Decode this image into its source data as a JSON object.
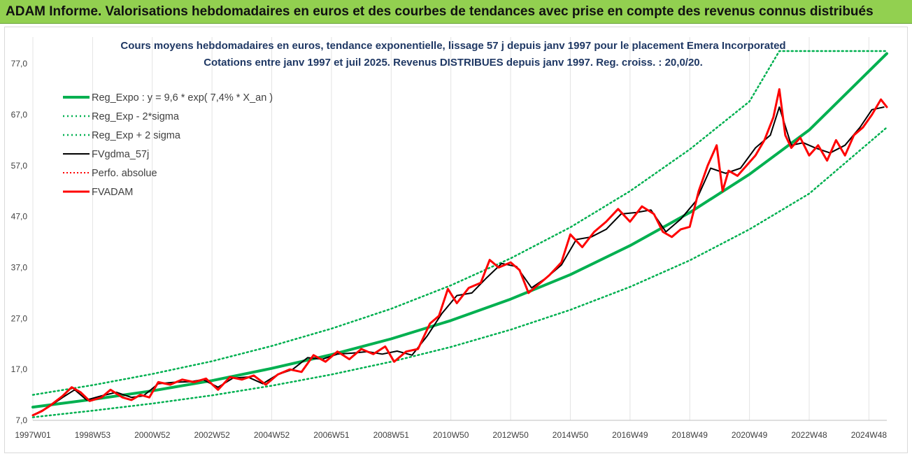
{
  "banner_title": "ADAM Informe. Valorisations hebdomadaires en euros et des courbes de tendances avec prise en compte des revenus connus distribués",
  "chart_data": {
    "type": "line",
    "title_line1": "Cours moyens hebdomadaires en euros, tendance exponentielle, lissage 57 j depuis janv 1997 pour le placement Emera Incorporated",
    "title_line2": "Cotations entre janv 1997 et juil 2025. Revenus DISTRIBUES depuis janv 1997. Reg. croiss. : 20,0/20.",
    "xlabel": "",
    "ylabel": "",
    "x_ticks": [
      "1997W01",
      "1998W53",
      "2000W52",
      "2002W52",
      "2004W52",
      "2006W51",
      "2008W51",
      "2010W50",
      "2012W50",
      "2014W50",
      "2016W49",
      "2018W49",
      "2020W49",
      "2022W48",
      "2024W48"
    ],
    "x_range": [
      1997.0,
      2025.6
    ],
    "y_ticks": [
      "7,0",
      "17,0",
      "27,0",
      "37,0",
      "47,0",
      "57,0",
      "67,0",
      "77,0"
    ],
    "ylim": [
      7,
      79.5
    ],
    "grid": "vertical",
    "legend_position": "top-left",
    "colors": {
      "reg_expo": "#00b050",
      "reg_band": "#00b050",
      "fvgdma": "#000000",
      "perfo": "#ff0000",
      "fvadam": "#ff0000",
      "banner_bg": "#92d050",
      "title": "#1f3864"
    },
    "series": [
      {
        "name": "Reg_Expo : y = 9,6 * exp( 7,4% *  X_an )",
        "style": "solid-thick",
        "x": [
          1997.0,
          1999.0,
          2001.0,
          2003.0,
          2005.0,
          2007.0,
          2009.0,
          2011.0,
          2013.0,
          2015.0,
          2017.0,
          2019.0,
          2021.0,
          2023.0,
          2025.6
        ],
        "y": [
          9.6,
          11.1,
          12.8,
          14.8,
          17.2,
          19.9,
          23.0,
          26.6,
          30.8,
          35.6,
          41.3,
          47.8,
          55.3,
          64.0,
          79.0
        ]
      },
      {
        "name": "Reg_Exp - 2*sigma",
        "style": "dotted",
        "x": [
          1997.0,
          1999.0,
          2001.0,
          2003.0,
          2005.0,
          2007.0,
          2009.0,
          2011.0,
          2013.0,
          2015.0,
          2017.0,
          2019.0,
          2021.0,
          2023.0,
          2025.6
        ],
        "y": [
          7.6,
          8.9,
          10.3,
          11.9,
          13.8,
          16.0,
          18.5,
          21.4,
          24.8,
          28.7,
          33.2,
          38.4,
          44.5,
          51.5,
          64.5
        ]
      },
      {
        "name": "Reg_Exp + 2 sigma",
        "style": "dotted",
        "x": [
          1997.0,
          1999.0,
          2001.0,
          2003.0,
          2005.0,
          2007.0,
          2009.0,
          2011.0,
          2013.0,
          2015.0,
          2017.0,
          2019.0,
          2021.0,
          2022.0,
          2025.6
        ],
        "y": [
          12.0,
          13.9,
          16.1,
          18.6,
          21.6,
          25.0,
          28.9,
          33.5,
          38.8,
          44.9,
          52.0,
          60.2,
          69.6,
          79.5,
          79.5
        ]
      },
      {
        "name": "FVgdma_57j",
        "style": "solid",
        "x": [
          1997.0,
          1997.5,
          1998.0,
          1998.4,
          1998.8,
          1999.3,
          1999.8,
          2000.3,
          2000.7,
          2001.2,
          2001.8,
          2002.3,
          2002.7,
          2003.2,
          2003.7,
          2004.2,
          2004.7,
          2005.2,
          2005.7,
          2006.2,
          2006.7,
          2007.2,
          2007.7,
          2008.2,
          2008.7,
          2009.2,
          2009.7,
          2010.2,
          2010.7,
          2011.2,
          2011.7,
          2012.2,
          2012.7,
          2013.2,
          2013.7,
          2014.2,
          2014.7,
          2015.2,
          2015.7,
          2016.2,
          2016.7,
          2017.2,
          2017.7,
          2018.2,
          2018.7,
          2019.2,
          2019.7,
          2020.2,
          2020.7,
          2021.2,
          2021.7,
          2022.0,
          2022.4,
          2022.8,
          2023.2,
          2023.7,
          2024.2,
          2024.7,
          2025.1,
          2025.5
        ],
        "y": [
          8.0,
          9.5,
          11.5,
          13.0,
          11.0,
          11.8,
          12.5,
          11.5,
          11.8,
          14.2,
          14.5,
          14.6,
          15.0,
          13.5,
          15.3,
          15.5,
          14.2,
          16.0,
          17.0,
          19.3,
          19.0,
          20.0,
          20.2,
          20.5,
          20.0,
          20.6,
          19.8,
          23.5,
          28.0,
          31.5,
          32.0,
          35.0,
          37.8,
          37.2,
          33.0,
          35.0,
          37.5,
          42.5,
          43.0,
          44.5,
          47.5,
          47.8,
          48.3,
          44.0,
          46.5,
          50.0,
          56.5,
          55.5,
          56.5,
          60.5,
          63.0,
          68.5,
          61.0,
          61.5,
          60.5,
          59.5,
          61.0,
          64.5,
          68.0,
          68.5
        ]
      },
      {
        "name": "Perfo. absolue",
        "style": "dotted",
        "x": [],
        "y": []
      },
      {
        "name": "FVADAM",
        "style": "solid-thick",
        "x": [
          1997.0,
          1997.3,
          1997.6,
          1998.0,
          1998.3,
          1998.6,
          1998.9,
          1999.3,
          1999.6,
          2000.0,
          2000.3,
          2000.6,
          2000.9,
          2001.2,
          2001.6,
          2002.0,
          2002.4,
          2002.8,
          2003.2,
          2003.6,
          2004.0,
          2004.4,
          2004.8,
          2005.2,
          2005.6,
          2006.0,
          2006.4,
          2006.8,
          2007.2,
          2007.6,
          2008.0,
          2008.4,
          2008.8,
          2009.1,
          2009.5,
          2009.9,
          2010.3,
          2010.6,
          2010.9,
          2011.2,
          2011.6,
          2012.0,
          2012.3,
          2012.6,
          2013.0,
          2013.3,
          2013.6,
          2014.0,
          2014.3,
          2014.7,
          2015.0,
          2015.4,
          2015.8,
          2016.2,
          2016.6,
          2017.0,
          2017.4,
          2017.8,
          2018.1,
          2018.4,
          2018.7,
          2019.0,
          2019.3,
          2019.6,
          2019.9,
          2020.1,
          2020.3,
          2020.6,
          2020.9,
          2021.2,
          2021.5,
          2021.8,
          2022.0,
          2022.2,
          2022.4,
          2022.7,
          2023.0,
          2023.3,
          2023.6,
          2023.9,
          2024.2,
          2024.5,
          2024.8,
          2025.1,
          2025.4,
          2025.6
        ],
        "y": [
          8.0,
          8.8,
          10.0,
          11.8,
          13.5,
          12.5,
          10.8,
          11.5,
          13.0,
          11.5,
          11.0,
          12.0,
          11.5,
          14.5,
          14.0,
          15.0,
          14.5,
          15.2,
          13.0,
          15.5,
          15.0,
          15.8,
          14.0,
          16.0,
          17.0,
          16.5,
          19.8,
          18.5,
          20.5,
          19.0,
          21.0,
          20.0,
          21.5,
          18.5,
          20.5,
          21.0,
          26.0,
          27.5,
          32.8,
          30.0,
          33.0,
          34.0,
          38.5,
          37.0,
          38.0,
          36.5,
          32.0,
          34.0,
          35.5,
          38.0,
          43.5,
          41.0,
          44.0,
          46.0,
          48.5,
          46.0,
          49.0,
          47.5,
          44.0,
          43.0,
          44.5,
          45.0,
          52.0,
          57.0,
          61.0,
          52.0,
          56.0,
          55.0,
          57.0,
          59.0,
          62.0,
          66.5,
          72.0,
          63.0,
          60.5,
          62.5,
          59.0,
          61.0,
          58.0,
          62.0,
          59.0,
          63.0,
          64.5,
          67.0,
          70.0,
          68.5
        ]
      }
    ]
  }
}
